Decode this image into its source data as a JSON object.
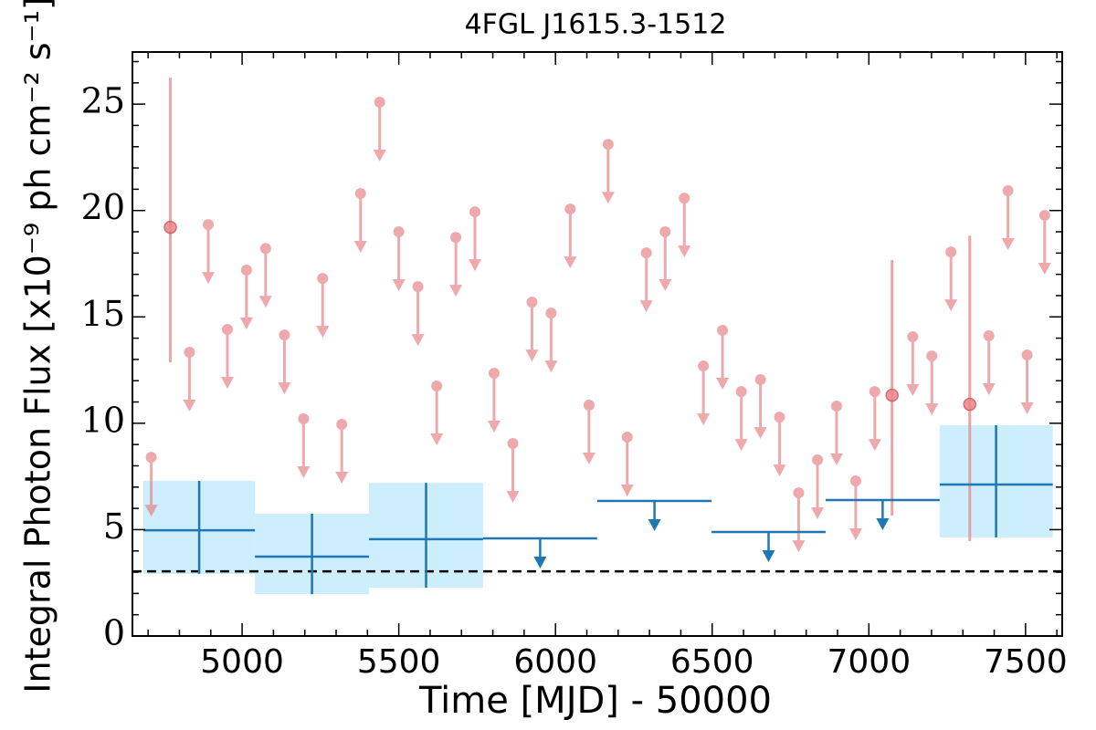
{
  "chart_data": {
    "type": "lightcurve",
    "title": "4FGL J1615.3-1512",
    "xlabel": "Time [MJD] - 50000",
    "ylabel": "Integral Photon Flux [x10⁻⁹ ph cm⁻² s⁻¹]",
    "xlim": [
      4650,
      7617
    ],
    "ylim": [
      0,
      27.45
    ],
    "xticks": [
      5000,
      5500,
      6000,
      6500,
      7000,
      7500
    ],
    "yticks": [
      0,
      5,
      10,
      15,
      20,
      25
    ],
    "xminorticks": [
      4700,
      4800,
      4900,
      5100,
      5200,
      5300,
      5400,
      5600,
      5700,
      5800,
      5900,
      6100,
      6200,
      6300,
      6400,
      6600,
      6700,
      6800,
      6900,
      7100,
      7200,
      7300,
      7400,
      7600
    ],
    "yminorticks": [
      1,
      2,
      3,
      4,
      6,
      7,
      8,
      9,
      11,
      12,
      13,
      14,
      16,
      17,
      18,
      19,
      21,
      22,
      23,
      24,
      26,
      27
    ],
    "reference_line": 3.04,
    "monthly": {
      "color": "#e8868a",
      "x": [
        4710,
        4771,
        4832,
        4892,
        4953,
        5014,
        5075,
        5135,
        5196,
        5257,
        5318,
        5378,
        5439,
        5500,
        5561,
        5621,
        5682,
        5743,
        5804,
        5864,
        5925,
        5986,
        6047,
        6107,
        6168,
        6229,
        6290,
        6350,
        6411,
        6472,
        6533,
        6593,
        6654,
        6715,
        6776,
        6836,
        6897,
        6958,
        7019,
        7074,
        7140,
        7201,
        7262,
        7322,
        7383,
        7444,
        7505,
        7561
      ],
      "values": [
        8.4,
        19.21,
        13.34,
        19.34,
        14.41,
        17.2,
        18.22,
        14.15,
        10.21,
        16.81,
        9.95,
        20.8,
        25.09,
        19.0,
        16.42,
        11.75,
        18.74,
        19.94,
        12.35,
        9.05,
        15.69,
        15.18,
        20.07,
        10.85,
        23.11,
        9.35,
        18.01,
        19.0,
        20.58,
        12.69,
        14.37,
        11.49,
        12.05,
        10.29,
        6.73,
        8.28,
        10.81,
        7.29,
        11.49,
        11.32,
        14.07,
        13.16,
        18.05,
        10.89,
        14.11,
        20.93,
        13.21,
        19.77
      ],
      "upper_limit": [
        true,
        false,
        true,
        true,
        true,
        true,
        true,
        true,
        true,
        true,
        true,
        true,
        true,
        true,
        true,
        true,
        true,
        true,
        true,
        true,
        true,
        true,
        true,
        true,
        true,
        true,
        true,
        true,
        true,
        true,
        true,
        true,
        true,
        true,
        true,
        true,
        true,
        true,
        true,
        false,
        true,
        true,
        true,
        false,
        true,
        true,
        true,
        true
      ],
      "yerr_low": [
        null,
        6.35,
        null,
        null,
        null,
        null,
        null,
        null,
        null,
        null,
        null,
        null,
        null,
        null,
        null,
        null,
        null,
        null,
        null,
        null,
        null,
        null,
        null,
        null,
        null,
        null,
        null,
        null,
        null,
        null,
        null,
        null,
        null,
        null,
        null,
        null,
        null,
        null,
        null,
        5.66,
        null,
        null,
        null,
        6.43,
        null,
        null,
        null,
        null
      ],
      "yerr_high": [
        null,
        7.03,
        null,
        null,
        null,
        null,
        null,
        null,
        null,
        null,
        null,
        null,
        null,
        null,
        null,
        null,
        null,
        null,
        null,
        null,
        null,
        null,
        null,
        null,
        null,
        null,
        null,
        null,
        null,
        null,
        null,
        null,
        null,
        null,
        null,
        null,
        null,
        null,
        null,
        6.35,
        null,
        null,
        null,
        7.93,
        null,
        null,
        null,
        null
      ]
    },
    "yearly": {
      "color": "#1f77b4",
      "fill": "#cdeefc",
      "x_low": [
        4685,
        5041,
        5405,
        5769,
        6133,
        6498,
        6862,
        7226
      ],
      "x_high": [
        5041,
        5405,
        5769,
        6133,
        6498,
        6862,
        7226,
        7587
      ],
      "x": [
        4863,
        5223,
        5587,
        5951,
        6316,
        6680,
        7044,
        7406
      ],
      "values": [
        4.97,
        3.73,
        4.55,
        4.59,
        6.35,
        4.89,
        6.39,
        7.12
      ],
      "upper_limit": [
        false,
        false,
        false,
        true,
        true,
        true,
        true,
        false
      ],
      "yerr_low": [
        2.05,
        1.76,
        2.28,
        null,
        null,
        null,
        null,
        2.49
      ],
      "yerr_high": [
        2.32,
        2.02,
        2.65,
        null,
        null,
        null,
        null,
        2.79
      ]
    }
  }
}
